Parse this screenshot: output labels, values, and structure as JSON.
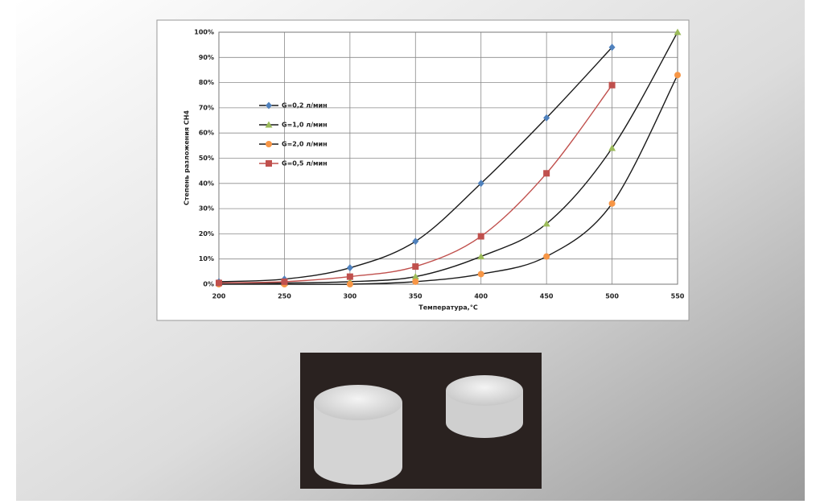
{
  "chart_data": {
    "type": "line",
    "x_label": "Температура,°C",
    "y_label": "Степень разложения CH4",
    "x": [
      200,
      250,
      300,
      350,
      400,
      450,
      500,
      550
    ],
    "xlim": [
      200,
      550
    ],
    "xticks": [
      200,
      250,
      300,
      350,
      400,
      450,
      500,
      550
    ],
    "ylim": [
      0,
      100
    ],
    "yticks": [
      {
        "value": 0,
        "label": "0%"
      },
      {
        "value": 10,
        "label": "10%"
      },
      {
        "value": 20,
        "label": "20%"
      },
      {
        "value": 30,
        "label": "30%"
      },
      {
        "value": 40,
        "label": "40%"
      },
      {
        "value": 50,
        "label": "50%"
      },
      {
        "value": 60,
        "label": "60%"
      },
      {
        "value": 70,
        "label": "70%"
      },
      {
        "value": 80,
        "label": "80%"
      },
      {
        "value": 90,
        "label": "90%"
      },
      {
        "value": 100,
        "label": "100%"
      }
    ],
    "grid": true,
    "series": [
      {
        "name": "G=0,2 л/мин",
        "color": "#4f81bd",
        "line_color": "#1a1a1a",
        "marker": "diamond",
        "values": [
          1,
          2,
          6.5,
          17,
          40,
          66,
          94,
          null
        ]
      },
      {
        "name": "G=1,0 л/мин",
        "color": "#9bbb59",
        "line_color": "#1a1a1a",
        "marker": "triangle",
        "values": [
          0.5,
          0.5,
          1,
          3,
          11,
          24,
          54,
          100
        ]
      },
      {
        "name": "G=2,0 л/мин",
        "color": "#f79646",
        "line_color": "#1a1a1a",
        "marker": "circle",
        "values": [
          0,
          0,
          0,
          1,
          4,
          11,
          32,
          83
        ]
      },
      {
        "name": "G=0,5 л/мин",
        "color": "#c0504d",
        "line_color": "#c0504d",
        "marker": "square",
        "values": [
          0.5,
          1,
          3,
          7,
          19,
          44,
          79,
          null
        ]
      }
    ]
  }
}
